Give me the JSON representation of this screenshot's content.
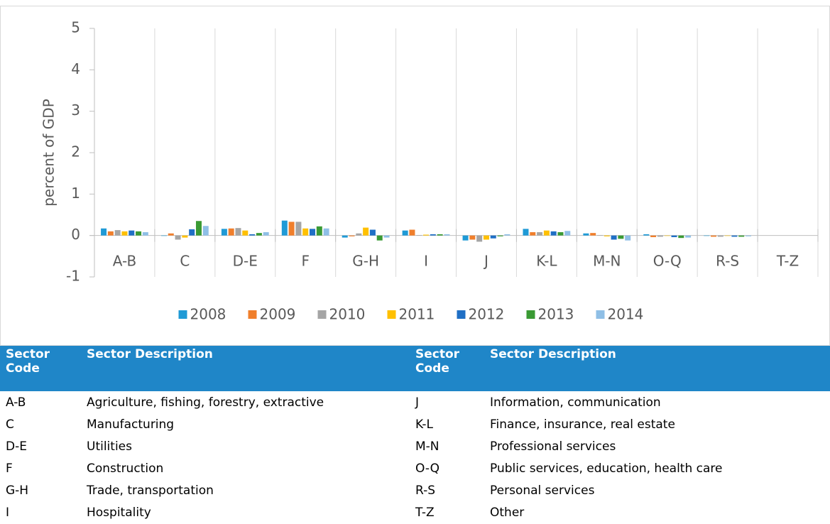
{
  "chart_data": {
    "type": "bar",
    "y_label": "percent of GDP",
    "categories": [
      "A-B",
      "C",
      "D-E",
      "F",
      "G-H",
      "I",
      "J",
      "K-L",
      "M-N",
      "O-Q",
      "R-S",
      "T-Z"
    ],
    "ylim": [
      -1,
      5
    ],
    "yticks": [
      -1,
      0,
      1,
      2,
      3,
      4,
      5
    ],
    "series": [
      {
        "name": "2008",
        "color": "#1f9ad6",
        "values": [
          0.17,
          -0.01,
          0.16,
          0.36,
          -0.05,
          0.12,
          -0.12,
          0.16,
          0.05,
          0.03,
          -0.01,
          0
        ]
      },
      {
        "name": "2009",
        "color": "#f07f2c",
        "values": [
          0.1,
          0.05,
          0.17,
          0.33,
          -0.02,
          0.14,
          -0.1,
          0.08,
          0.06,
          -0.04,
          -0.03,
          0
        ]
      },
      {
        "name": "2010",
        "color": "#a5a5a5",
        "values": [
          0.13,
          -0.1,
          0.18,
          0.33,
          0.05,
          0.01,
          -0.15,
          0.08,
          0.01,
          -0.03,
          -0.03,
          0
        ]
      },
      {
        "name": "2011",
        "color": "#ffc000",
        "values": [
          0.1,
          -0.05,
          0.12,
          0.17,
          0.19,
          0.02,
          -0.1,
          0.12,
          -0.02,
          -0.01,
          -0.01,
          0
        ]
      },
      {
        "name": "2012",
        "color": "#1f6fc5",
        "values": [
          0.12,
          0.15,
          0.03,
          0.16,
          0.14,
          0.03,
          -0.07,
          0.1,
          -0.1,
          -0.04,
          -0.03,
          0
        ]
      },
      {
        "name": "2013",
        "color": "#3a9a34",
        "values": [
          0.1,
          0.35,
          0.06,
          0.22,
          -0.12,
          0.03,
          -0.02,
          0.08,
          -0.08,
          -0.06,
          -0.03,
          0
        ]
      },
      {
        "name": "2014",
        "color": "#8fbfe6",
        "values": [
          0.08,
          0.23,
          0.08,
          0.17,
          -0.05,
          0.03,
          0.03,
          0.11,
          -0.12,
          -0.05,
          -0.02,
          0
        ]
      }
    ]
  },
  "table": {
    "header": [
      "Sector Code",
      "Sector Description",
      "Sector Code",
      "Sector Description"
    ],
    "rows": [
      [
        "A-B",
        "Agriculture, fishing, forestry, extractive",
        "J",
        "Information, communication"
      ],
      [
        "C",
        "Manufacturing",
        "K-L",
        "Finance, insurance, real estate"
      ],
      [
        "D-E",
        "Utilities",
        "M-N",
        "Professional services"
      ],
      [
        "F",
        "Construction",
        "O-Q",
        "Public services, education, health care"
      ],
      [
        "G-H",
        "Trade, transportation",
        "R-S",
        "Personal services"
      ],
      [
        "I",
        "Hospitality",
        "T-Z",
        "Other"
      ]
    ]
  }
}
